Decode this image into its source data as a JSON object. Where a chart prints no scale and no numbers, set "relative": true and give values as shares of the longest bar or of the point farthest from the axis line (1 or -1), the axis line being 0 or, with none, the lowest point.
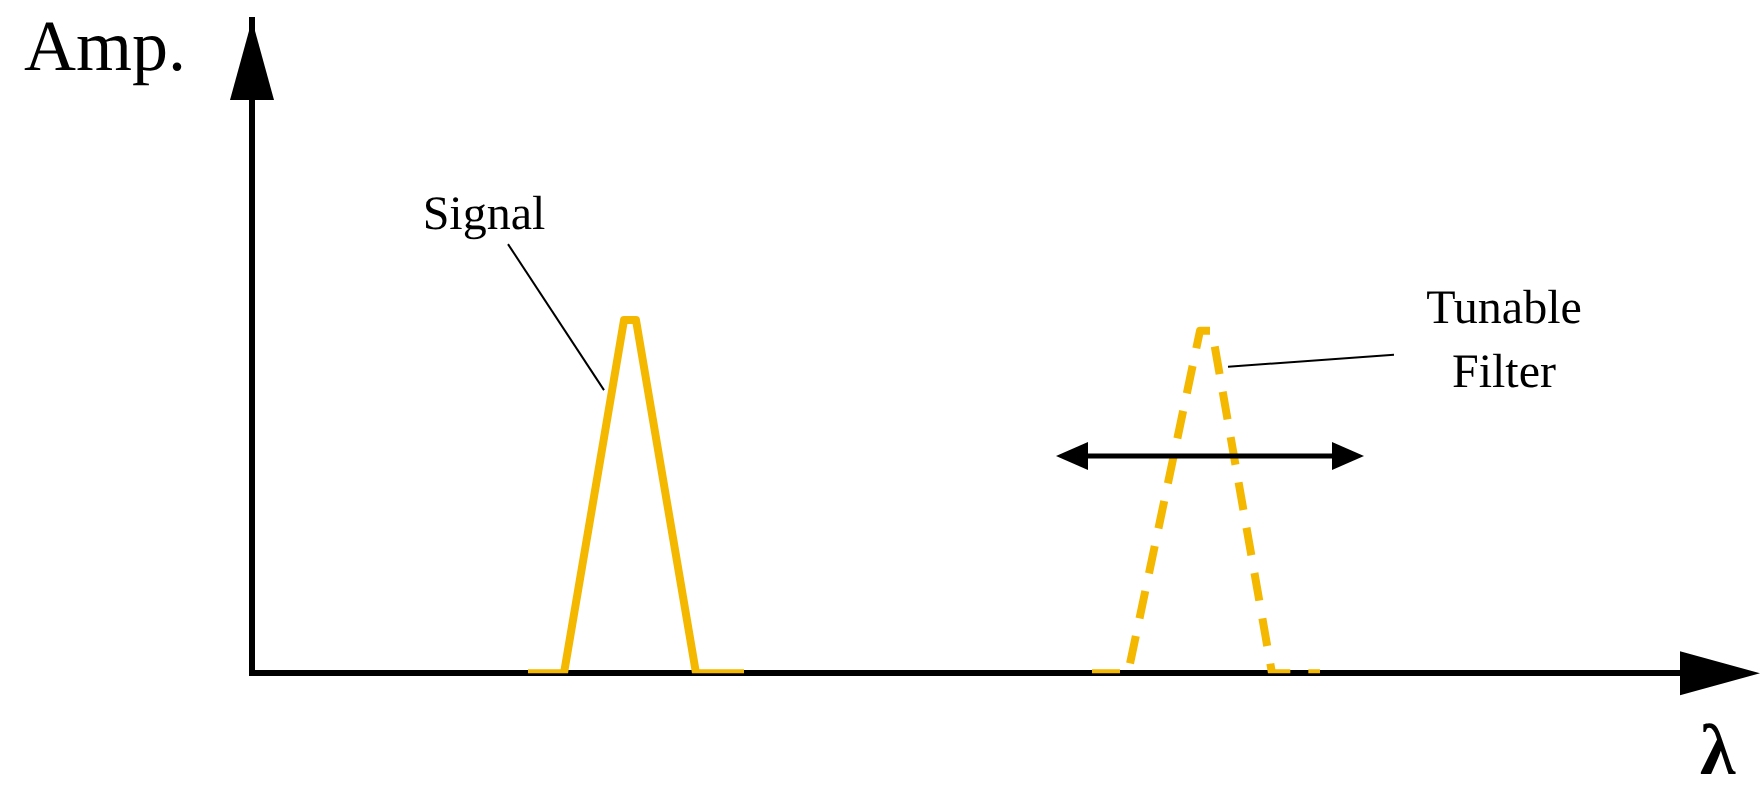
{
  "chart_data": {
    "type": "line",
    "relative": true,
    "xlabel": "λ",
    "ylabel": "Amp.",
    "categories": [
      null,
      null,
      null,
      null,
      null,
      null,
      null,
      null,
      null,
      null,
      null,
      null,
      null,
      null,
      null,
      null,
      null,
      null,
      null,
      null,
      null,
      null,
      null,
      null,
      null,
      null,
      null,
      null,
      null,
      null,
      null,
      null,
      null,
      null,
      null,
      null,
      null,
      null,
      null,
      null,
      null,
      null,
      null,
      null,
      null,
      null,
      null,
      null,
      null,
      null,
      null,
      null,
      null,
      null,
      null,
      null,
      null,
      null,
      null,
      null,
      null,
      null,
      null,
      null,
      null,
      null,
      null,
      null,
      null,
      null,
      null,
      null,
      null,
      null,
      null,
      null,
      null,
      null,
      null,
      null,
      null,
      null,
      null,
      null,
      null,
      null,
      null,
      null,
      null,
      null,
      null,
      null,
      null,
      null,
      null,
      null,
      null,
      null,
      null,
      null,
      null,
      null,
      null,
      null,
      null,
      null,
      null,
      null,
      null,
      null,
      null,
      null,
      null,
      null,
      null,
      null,
      null,
      null,
      null,
      null
    ],
    "series": [
      {
        "name": "Signal",
        "color": "#f5b800",
        "line_style": "solid",
        "values": [
          null,
          null,
          null,
          null,
          null,
          null,
          null,
          null,
          null,
          null,
          null,
          null,
          null,
          null,
          null,
          null,
          null,
          null,
          null,
          null,
          null,
          null,
          null,
          0,
          null,
          null,
          0,
          null,
          null,
          null,
          null,
          1,
          1,
          null,
          null,
          null,
          null,
          0,
          null,
          null,
          null,
          0,
          null,
          null,
          null,
          null,
          null,
          null,
          null,
          null,
          null,
          null,
          null,
          null,
          null,
          null,
          null,
          null,
          null,
          null,
          null,
          null,
          null,
          null,
          null,
          null,
          null,
          null,
          null,
          null,
          null,
          null,
          null,
          null,
          null,
          null,
          null,
          null,
          null,
          null,
          null,
          null,
          null,
          null,
          null,
          null,
          null,
          null,
          null,
          null,
          null,
          null,
          null,
          null,
          null,
          null,
          null,
          null,
          null,
          null,
          null,
          null,
          null,
          null,
          null,
          null,
          null,
          null,
          null,
          null,
          null,
          null,
          null,
          null,
          null,
          null,
          null,
          null,
          null,
          null
        ]
      },
      {
        "name": "Tunable Filter",
        "color": "#f5b800",
        "line_style": "dashed",
        "values": [
          null,
          null,
          null,
          null,
          null,
          null,
          null,
          null,
          null,
          null,
          null,
          null,
          null,
          null,
          null,
          null,
          null,
          null,
          null,
          null,
          null,
          null,
          null,
          null,
          null,
          null,
          null,
          null,
          null,
          null,
          null,
          null,
          null,
          null,
          null,
          null,
          null,
          null,
          null,
          null,
          null,
          null,
          null,
          null,
          null,
          null,
          null,
          null,
          null,
          null,
          null,
          null,
          null,
          null,
          null,
          null,
          null,
          null,
          null,
          null,
          null,
          null,
          null,
          null,
          null,
          null,
          null,
          null,
          null,
          null,
          0,
          null,
          null,
          0,
          null,
          null,
          null,
          null,
          null,
          0.97,
          0.97,
          null,
          null,
          null,
          null,
          0,
          null,
          null,
          null,
          0,
          null,
          null,
          null,
          null,
          null,
          null,
          null,
          null,
          null,
          null,
          null,
          null,
          null,
          null,
          null,
          null,
          null,
          null,
          null,
          null,
          null,
          null,
          null,
          null,
          null,
          null,
          null,
          null,
          null,
          null
        ]
      }
    ],
    "legend": false,
    "marker": "none"
  }
}
